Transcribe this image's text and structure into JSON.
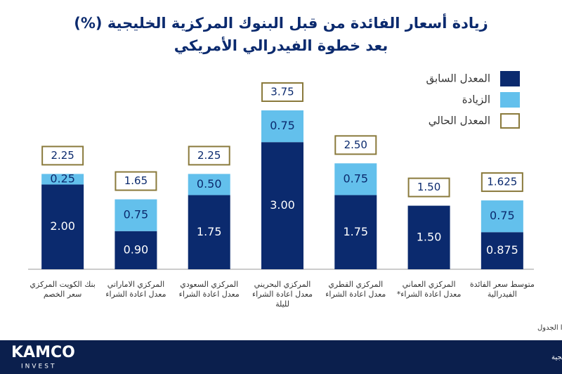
{
  "chart_data": {
    "type": "bar",
    "title": "زيادة أسعار الفائدة من قبل البنوك المركزية الخليجية (%)",
    "subtitle": "بعد خطوة الفيدرالي الأمريكي",
    "categories": [
      "بنك الكويت المركزي سعر الخصم",
      "المركزي الاماراتي معدل اعادة الشراء",
      "المركزي السعودي معدل اعادة الشراء",
      "المركزي البحريني معدل اعادة الشراء لليلة",
      "المركزي القطري معدل اعادة الشراء",
      "المركزي العماني معدل اعادة الشراء*",
      "متوسط سعر الفائدة الفيدرالية"
    ],
    "series": [
      {
        "name": "المعدل السابق",
        "color": "#0b2a6e",
        "values": [
          2,
          0.9,
          1.75,
          3,
          1.75,
          1.5,
          0.875
        ],
        "value_labels": [
          "2.00",
          "0.90",
          "1.75",
          "3.00",
          "1.75",
          "1.50",
          "0.875"
        ]
      },
      {
        "name": "الزيادة",
        "color": "#63c0ec",
        "values": [
          0.25,
          0.75,
          0.5,
          0.75,
          0.75,
          null,
          0.75
        ],
        "value_labels": [
          "0.25",
          "0.75",
          "0.50",
          "0.75",
          "0.75",
          null,
          "0.75"
        ]
      },
      {
        "name": "المعدل الحالي",
        "color": "#8a7a3c",
        "values": [
          2.25,
          1.65,
          2.25,
          3.75,
          2.5,
          1.5,
          1.625
        ],
        "value_labels": [
          "2.25",
          "1.65",
          "2.25",
          "3.75",
          "2.50",
          "1.50",
          "1.625"
        ]
      }
    ],
    "ylim": [
      0,
      3.75
    ],
    "note": "* ملاحظة: لم يتم الاعلان من المركزي العماني لغاية عمل هذا الجدول",
    "source": "المصدر: بحوث كامكو إنفست، بلومبيرغ، البنوك المركزية الخليجية",
    "logo": "KAMCO",
    "logo_sub": "INVEST"
  }
}
